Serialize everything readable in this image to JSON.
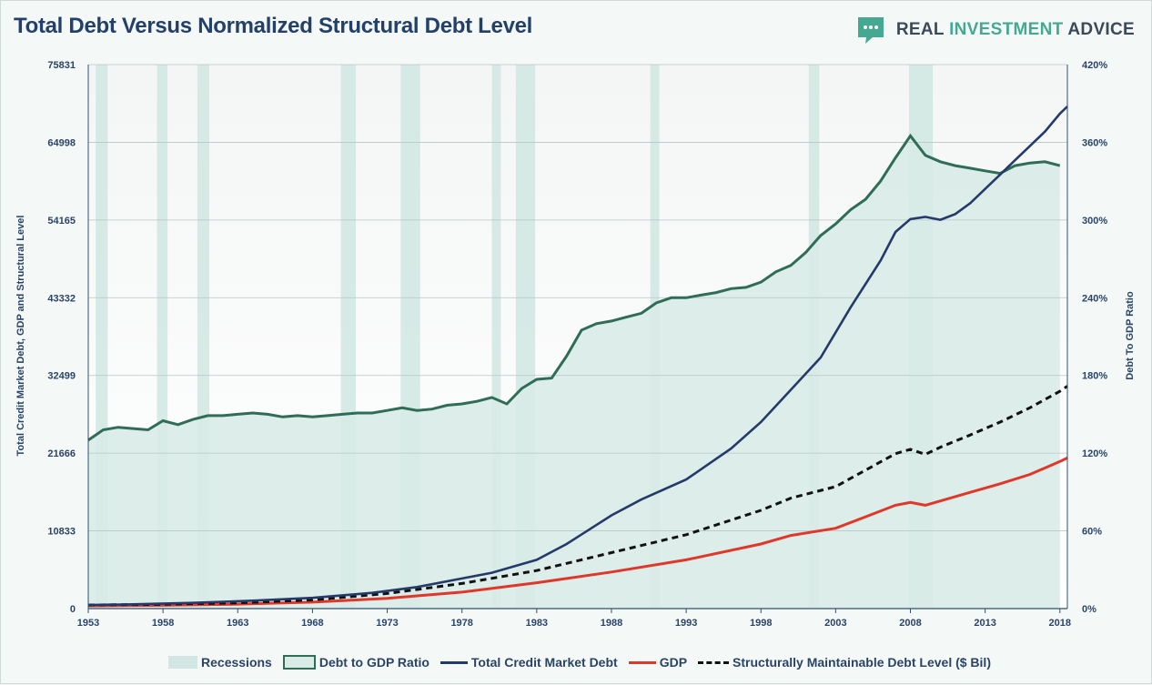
{
  "header": {
    "title": "Total Debt Versus Normalized Structural Debt Level",
    "brand": {
      "part1": "REAL ",
      "part2": "INVESTMENT",
      "part3": " ADVICE"
    }
  },
  "colors": {
    "recession": "#cfe6e2",
    "ratio_fill": "#d9ebe7",
    "ratio_line": "#2f6d56",
    "debt_line": "#243a6b",
    "gdp_line": "#e0372b",
    "structural_line": "#111111",
    "brand_accent": "#45a892"
  },
  "legend": {
    "recessions": "Recessions",
    "ratio": "Debt to GDP Ratio",
    "debt": "Total Credit Market Debt",
    "gdp": "GDP",
    "structural": "Structurally Maintainable Debt Level ($ Bil)"
  },
  "chart_data": {
    "type": "line",
    "title": "Total Debt Versus Normalized Structural Debt Level",
    "ylabel": "Total Credit Market Debt, GDP and Structural Level",
    "y2label": "Debt To GDP Ratio",
    "xlim": [
      1953,
      2018.5
    ],
    "ylim": [
      0,
      75831
    ],
    "y2lim": [
      0,
      420
    ],
    "y_ticks": [
      "0",
      "10833",
      "21666",
      "32499",
      "43332",
      "54165",
      "64998",
      "75831"
    ],
    "y2_ticks": [
      "0%",
      "60%",
      "120%",
      "180%",
      "240%",
      "300%",
      "360%",
      "420%"
    ],
    "x_ticks": [
      "1953",
      "1958",
      "1963",
      "1968",
      "1973",
      "1978",
      "1983",
      "1988",
      "1993",
      "1998",
      "2003",
      "2008",
      "2013",
      "2018"
    ],
    "grid": true,
    "legend_position": "bottom",
    "recessions": [
      [
        1953.5,
        1954.3
      ],
      [
        1957.6,
        1958.3
      ],
      [
        1960.3,
        1961.1
      ],
      [
        1969.9,
        1970.9
      ],
      [
        1973.9,
        1975.2
      ],
      [
        1980.0,
        1980.6
      ],
      [
        1981.6,
        1982.9
      ],
      [
        1990.6,
        1991.2
      ],
      [
        2001.2,
        2001.9
      ],
      [
        2007.9,
        2009.5
      ]
    ],
    "series": [
      {
        "name": "Debt to GDP Ratio",
        "axis": "right",
        "x": [
          1953,
          1954,
          1955,
          1956,
          1957,
          1958,
          1959,
          1960,
          1961,
          1962,
          1963,
          1964,
          1965,
          1966,
          1967,
          1968,
          1969,
          1970,
          1971,
          1972,
          1973,
          1974,
          1975,
          1976,
          1977,
          1978,
          1979,
          1980,
          1981,
          1982,
          1983,
          1984,
          1985,
          1986,
          1987,
          1988,
          1989,
          1990,
          1991,
          1992,
          1993,
          1994,
          1995,
          1996,
          1997,
          1998,
          1999,
          2000,
          2001,
          2002,
          2003,
          2004,
          2005,
          2006,
          2007,
          2008,
          2009,
          2010,
          2011,
          2012,
          2013,
          2014,
          2015,
          2016,
          2017,
          2018
        ],
        "values": [
          130,
          138,
          140,
          139,
          138,
          145,
          142,
          146,
          149,
          149,
          150,
          151,
          150,
          148,
          149,
          148,
          149,
          150,
          151,
          151,
          153,
          155,
          153,
          154,
          157,
          158,
          160,
          163,
          158,
          170,
          177,
          178,
          195,
          215,
          220,
          222,
          225,
          228,
          236,
          240,
          240,
          242,
          244,
          247,
          248,
          252,
          260,
          265,
          275,
          288,
          297,
          308,
          316,
          330,
          348,
          365,
          350,
          345,
          342,
          340,
          338,
          336,
          342,
          344,
          345,
          342
        ]
      },
      {
        "name": "Total Credit Market Debt",
        "axis": "left",
        "x": [
          1953,
          1956,
          1960,
          1964,
          1968,
          1972,
          1975,
          1978,
          1980,
          1983,
          1985,
          1988,
          1990,
          1993,
          1996,
          1998,
          2000,
          2002,
          2004,
          2006,
          2007,
          2008,
          2009,
          2010,
          2011,
          2012,
          2013,
          2014,
          2015,
          2016,
          2017,
          2018,
          2018.5
        ],
        "values": [
          500,
          600,
          800,
          1100,
          1500,
          2200,
          3000,
          4200,
          5000,
          6800,
          9000,
          13000,
          15200,
          18000,
          22300,
          26000,
          30500,
          35000,
          42000,
          48500,
          52500,
          54300,
          54600,
          54200,
          55000,
          56500,
          58500,
          60500,
          62500,
          64500,
          66500,
          69000,
          70000
        ]
      },
      {
        "name": "GDP",
        "axis": "left",
        "x": [
          1953,
          1958,
          1963,
          1968,
          1973,
          1978,
          1983,
          1988,
          1993,
          1998,
          2000,
          2003,
          2005,
          2007,
          2008,
          2009,
          2010,
          2012,
          2014,
          2016,
          2018,
          2018.5
        ],
        "values": [
          380,
          460,
          620,
          900,
          1420,
          2300,
          3600,
          5100,
          6800,
          9000,
          10200,
          11200,
          12800,
          14400,
          14800,
          14400,
          15000,
          16200,
          17400,
          18700,
          20500,
          21000
        ]
      },
      {
        "name": "Structurally Maintainable Debt Level ($ Bil)",
        "axis": "left",
        "x": [
          1953,
          1958,
          1963,
          1968,
          1973,
          1978,
          1983,
          1988,
          1993,
          1998,
          2000,
          2003,
          2005,
          2007,
          2008,
          2009,
          2010,
          2012,
          2014,
          2016,
          2018,
          2018.5
        ],
        "values": [
          500,
          600,
          800,
          1200,
          2100,
          3500,
          5300,
          7800,
          10300,
          13700,
          15400,
          17000,
          19300,
          21600,
          22200,
          21500,
          22500,
          24200,
          26000,
          28000,
          30300,
          31000
        ]
      }
    ]
  }
}
